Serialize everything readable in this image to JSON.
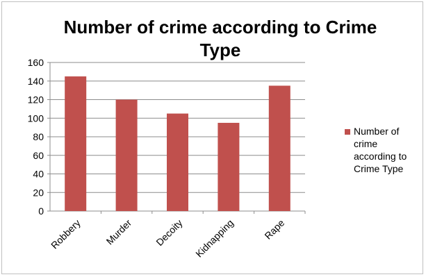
{
  "chart_data": {
    "type": "bar",
    "title_lines": [
      "Number of crime according to Crime",
      "Type"
    ],
    "categories": [
      "Robbery",
      "Murder",
      "Decoity",
      "Kidnapping",
      "Rape"
    ],
    "series": [
      {
        "name_lines": [
          "Number of",
          "crime",
          "according to",
          "Crime Type"
        ],
        "values": [
          145,
          120,
          105,
          95,
          135
        ],
        "color": "#c0504d"
      }
    ],
    "y_ticks": [
      "0",
      "20",
      "40",
      "60",
      "80",
      "100",
      "120",
      "140",
      "160"
    ],
    "ylim": [
      0,
      160
    ],
    "grid": true,
    "legend_position": "right",
    "xlabel": "",
    "ylabel": ""
  }
}
